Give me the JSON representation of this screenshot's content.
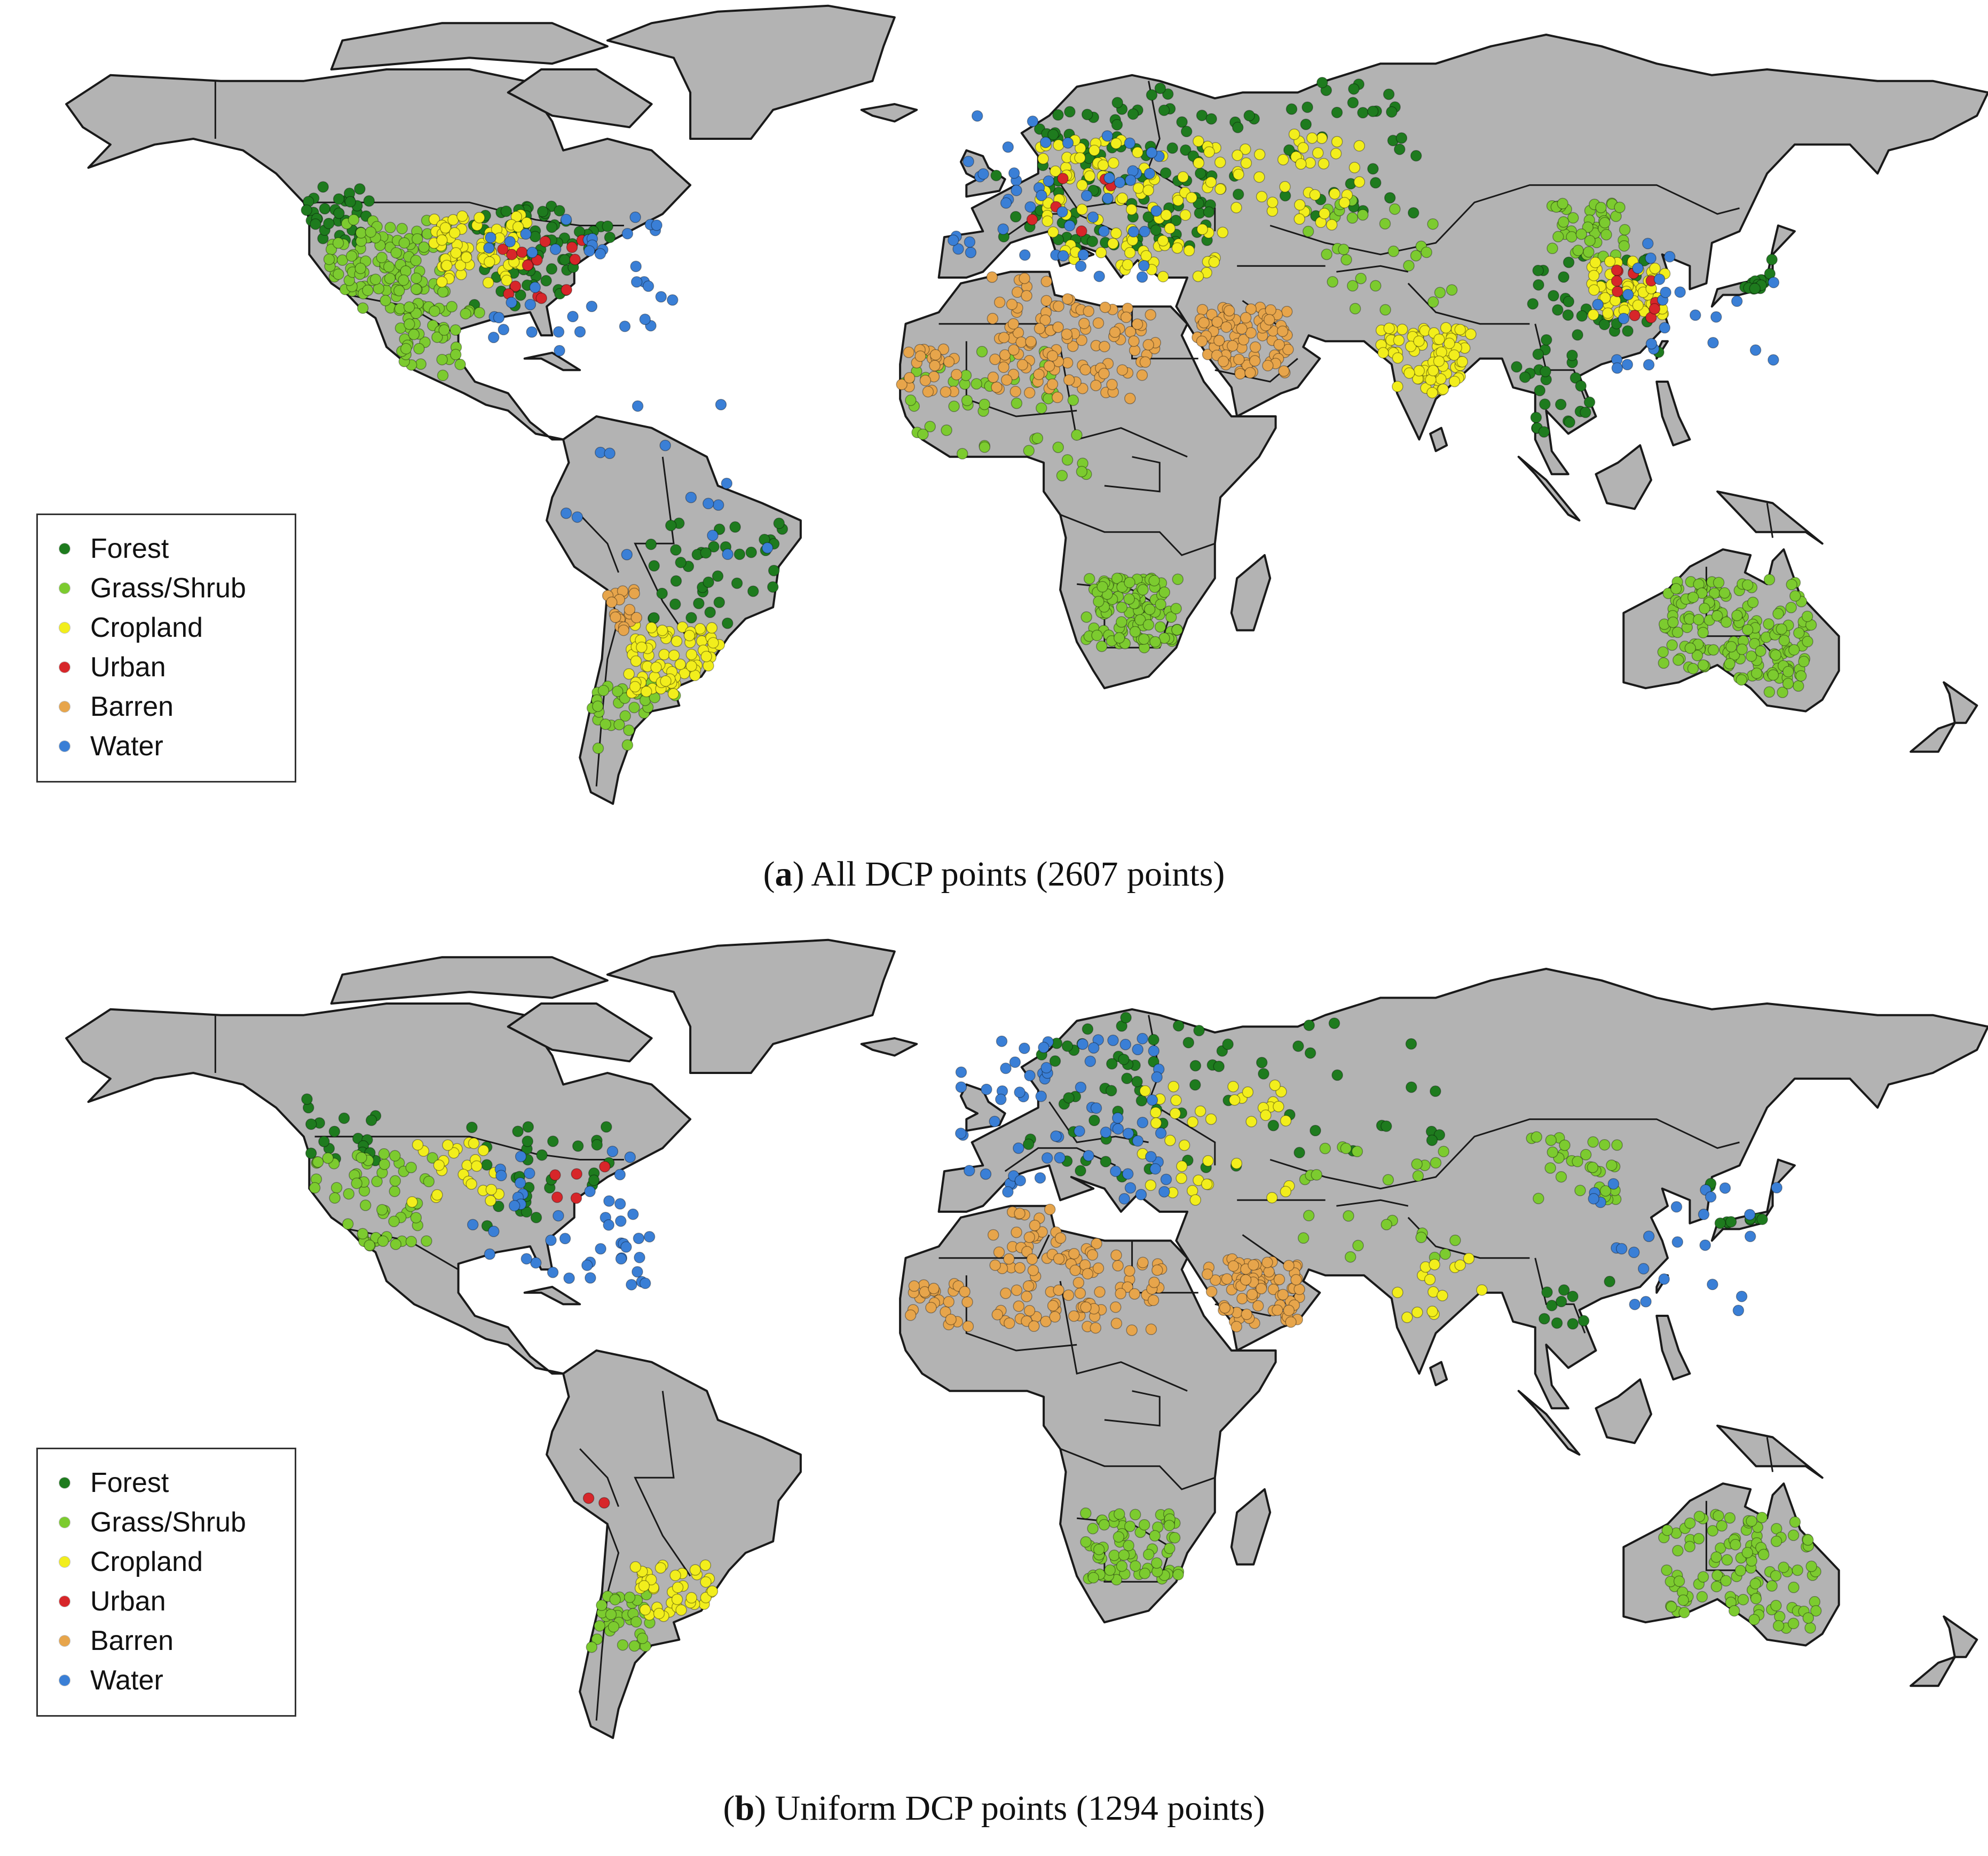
{
  "legend": {
    "items": [
      {
        "label": "Forest",
        "color": "#1e7b1e"
      },
      {
        "label": "Grass/Shrub",
        "color": "#7ccb2f"
      },
      {
        "label": "Cropland",
        "color": "#f2ee1c"
      },
      {
        "label": "Urban",
        "color": "#d7262a"
      },
      {
        "label": "Barren",
        "color": "#e7a54b"
      },
      {
        "label": "Water",
        "color": "#3a7fd6"
      }
    ]
  },
  "colors": {
    "land": "#b3b3b3",
    "border": "#1a1a1a",
    "ocean": "#ffffff"
  },
  "panels": [
    {
      "letter": "a",
      "caption_rest": ") All DCP points (2607 points)",
      "caption_open": "("
    },
    {
      "letter": "b",
      "caption_rest": ") Uniform DCP points (1294 points)",
      "caption_open": "("
    }
  ],
  "map_data": {
    "type": "scatter-map",
    "projection": "equirectangular",
    "x_range_lon": [
      -180,
      180
    ],
    "y_range_lat": [
      -60,
      84
    ],
    "panels": [
      {
        "panel": "a",
        "total_points": 2607,
        "clusters": [
          {
            "class": "Forest",
            "lon": -82,
            "lat": 40,
            "spread": 9,
            "n": 70
          },
          {
            "class": "Forest",
            "lon": -120,
            "lat": 47,
            "spread": 5,
            "n": 35
          },
          {
            "class": "Forest",
            "lon": 20,
            "lat": 55,
            "spread": 14,
            "n": 110
          },
          {
            "class": "Forest",
            "lon": 60,
            "lat": 58,
            "spread": 12,
            "n": 40
          },
          {
            "class": "Forest",
            "lon": 110,
            "lat": 30,
            "spread": 10,
            "n": 40
          },
          {
            "class": "Forest",
            "lon": 138,
            "lat": 37,
            "spread": 3,
            "n": 20
          },
          {
            "class": "Forest",
            "lon": -50,
            "lat": -15,
            "spread": 9,
            "n": 40
          },
          {
            "class": "Forest",
            "lon": 100,
            "lat": 15,
            "spread": 6,
            "n": 20
          },
          {
            "class": "Grass/Shrub",
            "lon": -110,
            "lat": 38,
            "spread": 8,
            "n": 120
          },
          {
            "class": "Grass/Shrub",
            "lon": -100,
            "lat": 25,
            "spread": 6,
            "n": 40
          },
          {
            "class": "Grass/Shrub",
            "lon": 25,
            "lat": -22,
            "spread": 6,
            "n": 110
          },
          {
            "class": "Grass/Shrub",
            "lon": 135,
            "lat": -26,
            "spread": 10,
            "n": 170
          },
          {
            "class": "Grass/Shrub",
            "lon": 0,
            "lat": 12,
            "spread": 12,
            "n": 50
          },
          {
            "class": "Grass/Shrub",
            "lon": 108,
            "lat": 44,
            "spread": 5,
            "n": 45
          },
          {
            "class": "Grass/Shrub",
            "lon": -65,
            "lat": -40,
            "spread": 6,
            "n": 30
          },
          {
            "class": "Grass/Shrub",
            "lon": 70,
            "lat": 40,
            "spread": 10,
            "n": 30
          },
          {
            "class": "Cropland",
            "lon": -93,
            "lat": 41,
            "spread": 6,
            "n": 80
          },
          {
            "class": "Cropland",
            "lon": 25,
            "lat": 48,
            "spread": 12,
            "n": 120
          },
          {
            "class": "Cropland",
            "lon": 78,
            "lat": 22,
            "spread": 6,
            "n": 80
          },
          {
            "class": "Cropland",
            "lon": 115,
            "lat": 34,
            "spread": 5,
            "n": 60
          },
          {
            "class": "Cropland",
            "lon": -58,
            "lat": -30,
            "spread": 6,
            "n": 80
          },
          {
            "class": "Cropland",
            "lon": 55,
            "lat": 53,
            "spread": 8,
            "n": 40
          },
          {
            "class": "Urban",
            "lon": -80,
            "lat": 38,
            "spread": 7,
            "n": 15
          },
          {
            "class": "Urban",
            "lon": 118,
            "lat": 33,
            "spread": 5,
            "n": 10
          },
          {
            "class": "Urban",
            "lon": 10,
            "lat": 48,
            "spread": 8,
            "n": 6
          },
          {
            "class": "Barren",
            "lon": 15,
            "lat": 26,
            "spread": 11,
            "n": 120
          },
          {
            "class": "Barren",
            "lon": 45,
            "lat": 25,
            "spread": 6,
            "n": 90
          },
          {
            "class": "Barren",
            "lon": -12,
            "lat": 20,
            "spread": 4,
            "n": 25
          },
          {
            "class": "Barren",
            "lon": -70,
            "lat": -22,
            "spread": 4,
            "n": 20
          },
          {
            "class": "Water",
            "lon": -75,
            "lat": 35,
            "spread": 12,
            "n": 40
          },
          {
            "class": "Water",
            "lon": 12,
            "lat": 50,
            "spread": 14,
            "n": 50
          },
          {
            "class": "Water",
            "lon": 125,
            "lat": 30,
            "spread": 12,
            "n": 25
          },
          {
            "class": "Water",
            "lon": -60,
            "lat": 0,
            "spread": 15,
            "n": 15
          }
        ]
      },
      {
        "panel": "b",
        "total_points": 1294,
        "clusters": [
          {
            "class": "Forest",
            "lon": -82,
            "lat": 42,
            "spread": 9,
            "n": 30
          },
          {
            "class": "Forest",
            "lon": -120,
            "lat": 50,
            "spread": 6,
            "n": 18
          },
          {
            "class": "Forest",
            "lon": 25,
            "lat": 56,
            "spread": 14,
            "n": 55
          },
          {
            "class": "Forest",
            "lon": 65,
            "lat": 58,
            "spread": 12,
            "n": 20
          },
          {
            "class": "Forest",
            "lon": 135,
            "lat": 38,
            "spread": 4,
            "n": 10
          },
          {
            "class": "Forest",
            "lon": 105,
            "lat": 18,
            "spread": 6,
            "n": 10
          },
          {
            "class": "Grass/Shrub",
            "lon": -112,
            "lat": 38,
            "spread": 8,
            "n": 60
          },
          {
            "class": "Grass/Shrub",
            "lon": 25,
            "lat": -22,
            "spread": 6,
            "n": 70
          },
          {
            "class": "Grass/Shrub",
            "lon": 135,
            "lat": -26,
            "spread": 10,
            "n": 110
          },
          {
            "class": "Grass/Shrub",
            "lon": -68,
            "lat": -35,
            "spread": 5,
            "n": 35
          },
          {
            "class": "Grass/Shrub",
            "lon": 105,
            "lat": 44,
            "spread": 6,
            "n": 30
          },
          {
            "class": "Grass/Shrub",
            "lon": 70,
            "lat": 38,
            "spread": 10,
            "n": 25
          },
          {
            "class": "Cropland",
            "lon": -98,
            "lat": 42,
            "spread": 6,
            "n": 25
          },
          {
            "class": "Cropland",
            "lon": 40,
            "lat": 48,
            "spread": 10,
            "n": 40
          },
          {
            "class": "Cropland",
            "lon": -58,
            "lat": -30,
            "spread": 5,
            "n": 40
          },
          {
            "class": "Cropland",
            "lon": 80,
            "lat": 22,
            "spread": 6,
            "n": 15
          },
          {
            "class": "Urban",
            "lon": -75,
            "lat": 40,
            "spread": 4,
            "n": 5
          },
          {
            "class": "Urban",
            "lon": -70,
            "lat": -15,
            "spread": 3,
            "n": 2
          },
          {
            "class": "Barren",
            "lon": 15,
            "lat": 26,
            "spread": 11,
            "n": 110
          },
          {
            "class": "Barren",
            "lon": 47,
            "lat": 22,
            "spread": 6,
            "n": 80
          },
          {
            "class": "Barren",
            "lon": -10,
            "lat": 20,
            "spread": 4,
            "n": 25
          },
          {
            "class": "Water",
            "lon": -78,
            "lat": 35,
            "spread": 12,
            "n": 45
          },
          {
            "class": "Water",
            "lon": 12,
            "lat": 52,
            "spread": 14,
            "n": 70
          },
          {
            "class": "Water",
            "lon": 125,
            "lat": 30,
            "spread": 12,
            "n": 25
          }
        ]
      }
    ]
  }
}
